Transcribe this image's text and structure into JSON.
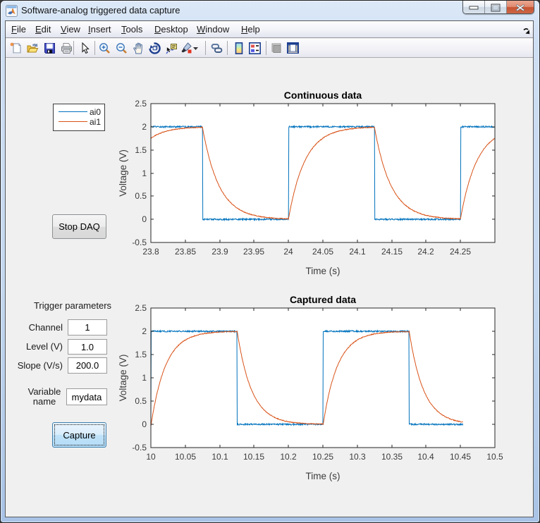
{
  "window": {
    "title": "Software-analog triggered data capture",
    "buttons": [
      "minimize",
      "maximize",
      "close"
    ]
  },
  "menubar": {
    "items": [
      "File",
      "Edit",
      "View",
      "Insert",
      "Tools",
      "Desktop",
      "Window",
      "Help"
    ],
    "mnemonics": [
      "F",
      "E",
      "V",
      "I",
      "T",
      "D",
      "W",
      "H"
    ]
  },
  "toolbar": {
    "buttons": [
      "new-figure-icon",
      "open-file-icon",
      "save-figure-icon",
      "print-figure-icon",
      "edit-plot-icon",
      "zoom-in-icon",
      "zoom-out-icon",
      "pan-icon",
      "rotate-3d-icon",
      "data-cursor-icon",
      "brush-icon",
      "brush-dropdown-icon",
      "link-plot-icon",
      "insert-colorbar-icon",
      "insert-legend-icon",
      "hide-plot-tools-icon",
      "show-plot-tools-icon"
    ]
  },
  "legend": {
    "entries": [
      {
        "label": "ai0",
        "color": "#0072BD"
      },
      {
        "label": "ai1",
        "color": "#D95319"
      }
    ]
  },
  "controls": {
    "stop_button": {
      "label": "Stop DAQ"
    },
    "capture_button": {
      "label": "Capture"
    },
    "group_label": "Trigger parameters",
    "fields": [
      {
        "label": "Channel",
        "value": "1"
      },
      {
        "label": "Level (V)",
        "value": "1.0"
      },
      {
        "label": "Slope (V/s)",
        "value": "200.0"
      },
      {
        "label": "Variable name",
        "label_line1": "Variable",
        "label_line2": "name",
        "value": "mydata"
      }
    ]
  },
  "chart_data": [
    {
      "type": "line",
      "title": "Continuous data",
      "xlabel": "Time (s)",
      "ylabel": "Voltage (V)",
      "xlim": [
        23.8,
        24.3
      ],
      "ylim": [
        -0.5,
        2.5
      ],
      "xticks": [
        23.8,
        23.85,
        23.9,
        23.95,
        24,
        24.05,
        24.1,
        24.15,
        24.2,
        24.25
      ],
      "xtick_labels": [
        "23.8",
        "23.85",
        "23.9",
        "23.95",
        "24",
        "24.05",
        "24.1",
        "24.15",
        "24.2",
        "24.25"
      ],
      "yticks": [
        2.5,
        2,
        1.5,
        1,
        0.5,
        0,
        -0.5
      ],
      "ytick_labels": [
        "2.5",
        "2",
        "1.5",
        "1",
        "0.5",
        "0",
        "-0.5"
      ],
      "grid": false,
      "legend_position": "outside-left",
      "series": [
        {
          "name": "ai0",
          "color": "#0072BD",
          "kind": "square",
          "amplitude_high": 2.0,
          "amplitude_low": 0.0,
          "period": 0.25,
          "duty": 0.5,
          "rise_edge_ref": 23.75,
          "t_start": 23.8,
          "t_end": 24.2995,
          "noise": 0.016
        },
        {
          "name": "ai1",
          "color": "#D95319",
          "kind": "rc-response",
          "amplitude_high": 2.0,
          "amplitude_low": 0.0,
          "period": 0.25,
          "duty": 0.5,
          "rise_edge_ref": 23.75,
          "tau": 0.024,
          "t_start": 23.8,
          "t_end": 24.2995,
          "noise": 0.008
        }
      ]
    },
    {
      "type": "line",
      "title": "Captured data",
      "xlabel": "Time (s)",
      "ylabel": "Voltage (V)",
      "xlim": [
        10,
        10.5
      ],
      "ylim": [
        -0.5,
        2.5
      ],
      "xticks": [
        10,
        10.05,
        10.1,
        10.15,
        10.2,
        10.25,
        10.3,
        10.35,
        10.4,
        10.45,
        10.5
      ],
      "xtick_labels": [
        "10",
        "10.05",
        "10.1",
        "10.15",
        "10.2",
        "10.25",
        "10.3",
        "10.35",
        "10.4",
        "10.45",
        "10.5"
      ],
      "yticks": [
        2.5,
        2,
        1.5,
        1,
        0.5,
        0,
        -0.5
      ],
      "ytick_labels": [
        "2.5",
        "2",
        "1.5",
        "1",
        "0.5",
        "0",
        "-0.5"
      ],
      "grid": false,
      "series": [
        {
          "name": "ai0",
          "color": "#0072BD",
          "kind": "square",
          "amplitude_high": 2.0,
          "amplitude_low": 0.0,
          "period": 0.25,
          "duty": 0.5,
          "rise_edge_ref": 10.0005,
          "t_start": 10.0,
          "t_end": 10.4535,
          "noise": 0.016
        },
        {
          "name": "ai1",
          "color": "#D95319",
          "kind": "rc-response",
          "amplitude_high": 2.0,
          "amplitude_low": 0.0,
          "period": 0.25,
          "duty": 0.5,
          "rise_edge_ref": 10.0005,
          "tau": 0.021,
          "t_start": 10.0,
          "t_end": 10.4535,
          "noise": 0.008
        }
      ]
    }
  ],
  "colors": {
    "figure_background": "#f0f0f0",
    "axes_background": "#ffffff",
    "axes_edge": "#262626",
    "tick_text": "#3b3b3b",
    "title_text": "#000000",
    "series_blue": "#0072BD",
    "series_orange": "#D95319"
  }
}
